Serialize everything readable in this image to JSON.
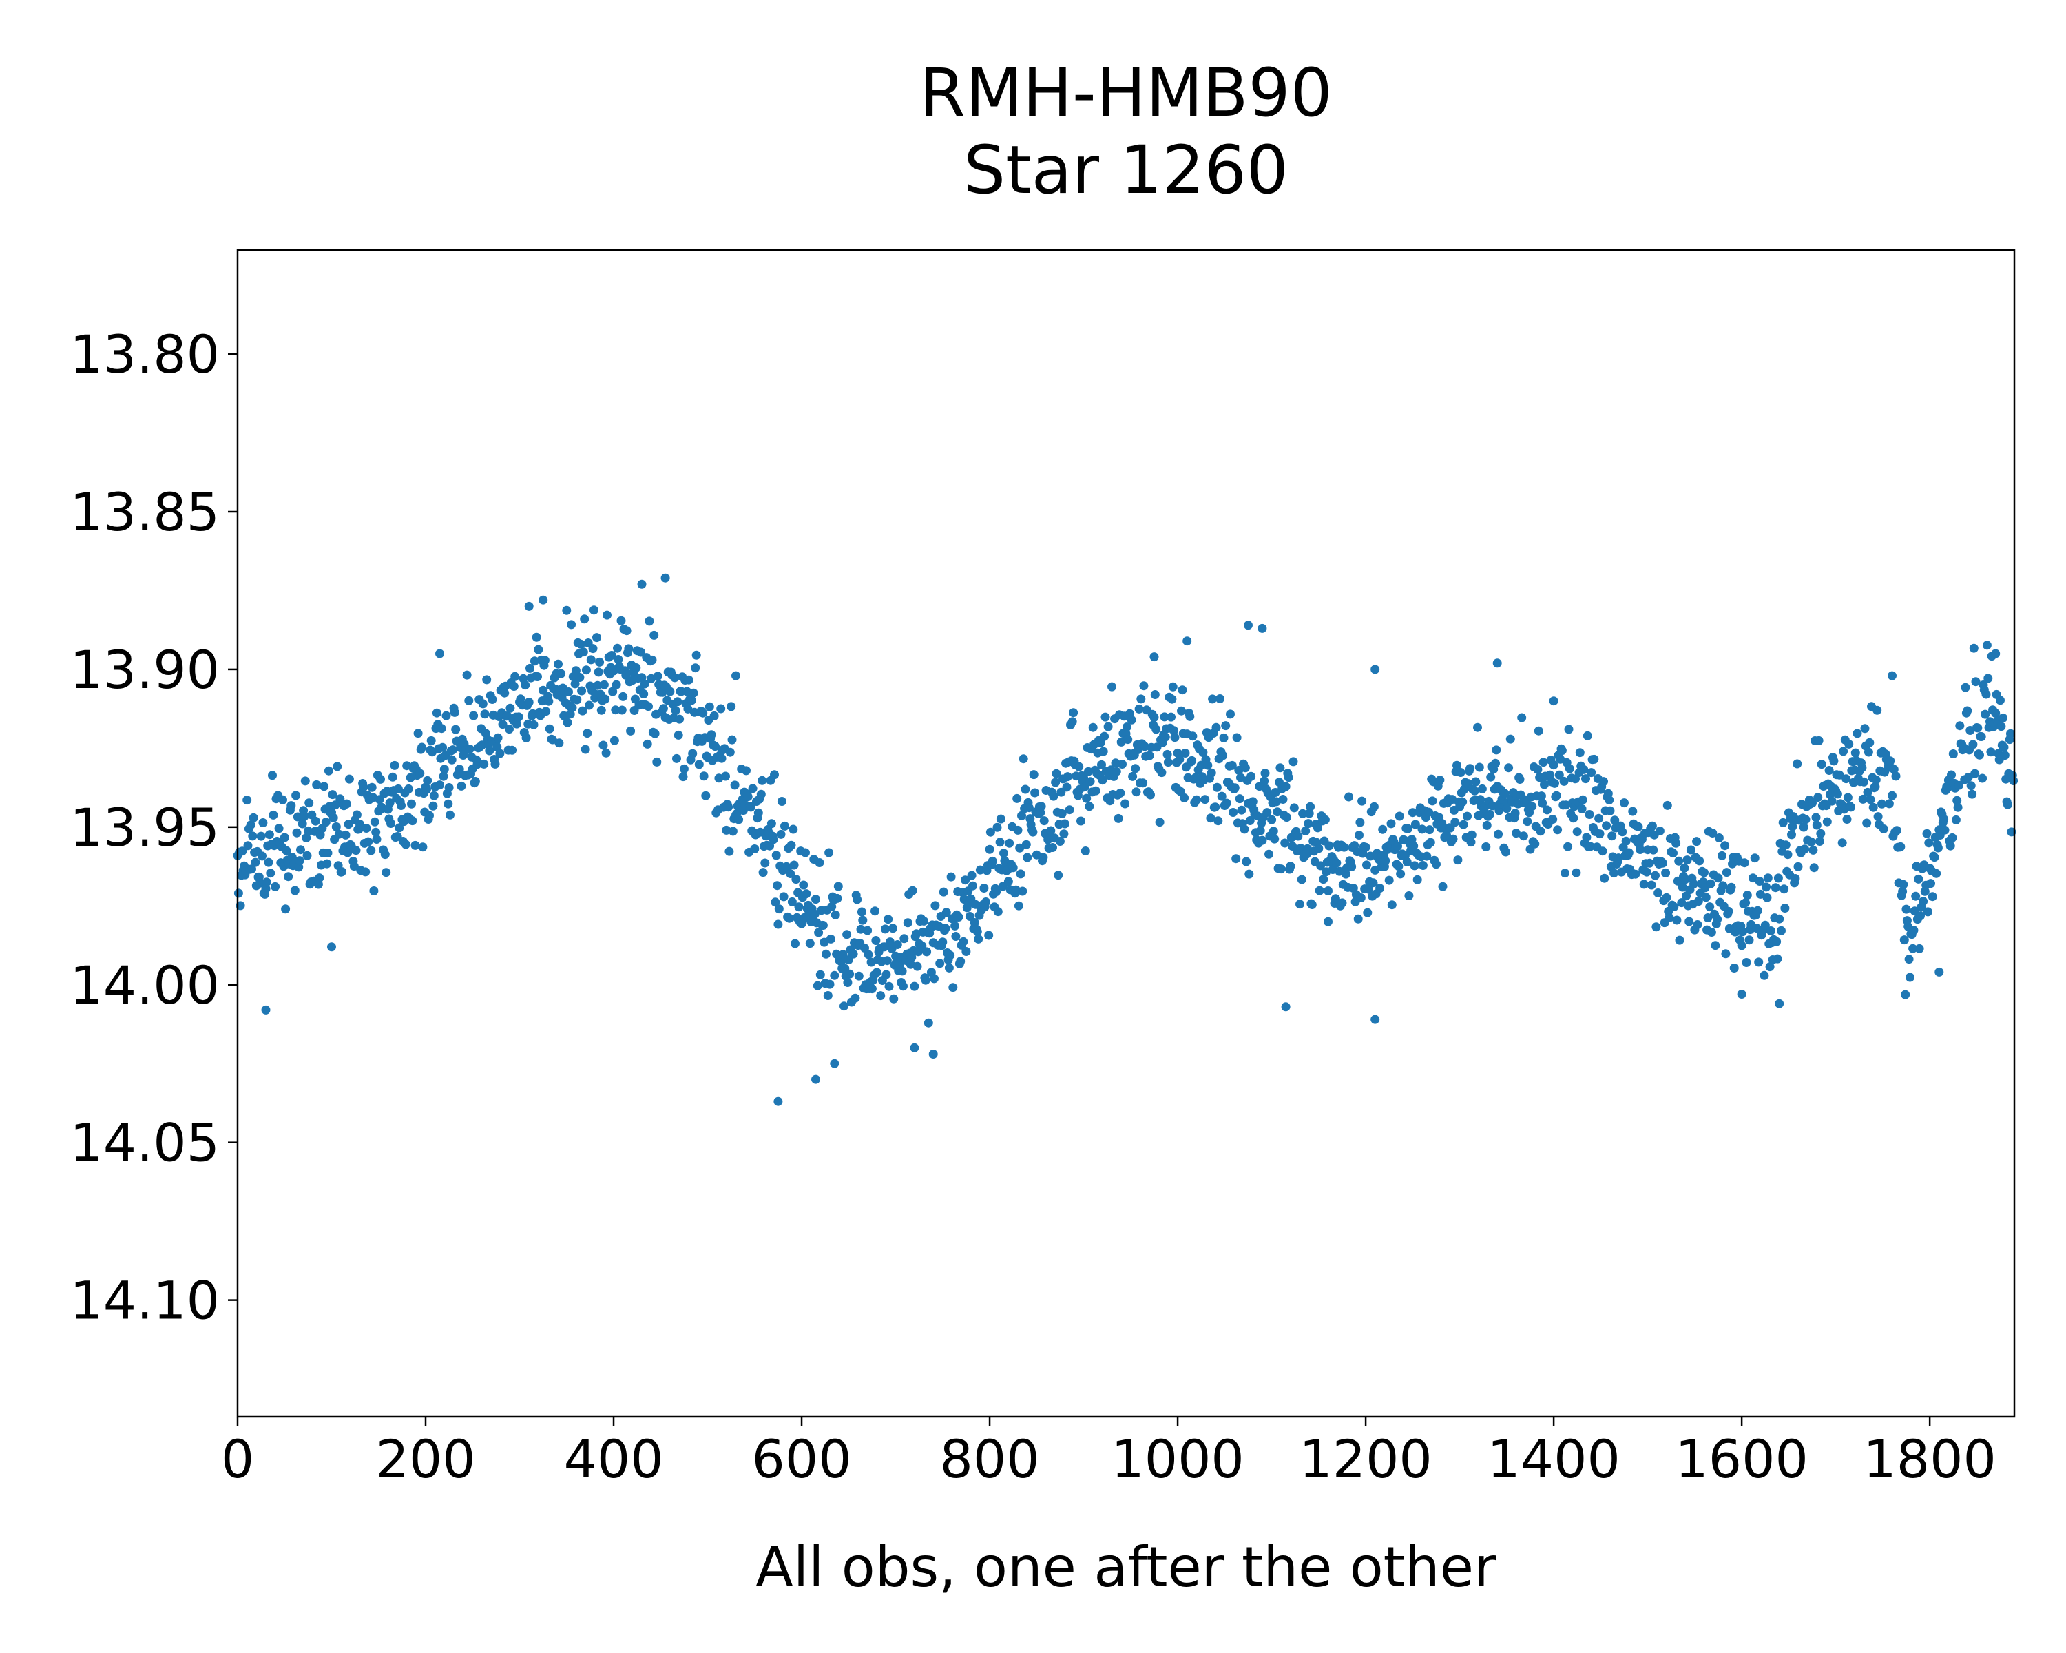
{
  "chart_data": {
    "type": "scatter",
    "title": [
      "RMH-HMB90",
      "Star 1260"
    ],
    "xlabel": "All obs, one after the other",
    "ylabel": "",
    "xlim": [
      0,
      1890
    ],
    "ylim": [
      14.137,
      13.767
    ],
    "y_inverted": true,
    "grid": false,
    "xticks": [
      0,
      200,
      400,
      600,
      800,
      1000,
      1200,
      1400,
      1600,
      1800
    ],
    "yticks": [
      13.8,
      13.85,
      13.9,
      13.95,
      14.0,
      14.05,
      14.1
    ],
    "ytick_labels": [
      "13.80",
      "13.85",
      "13.90",
      "13.95",
      "14.00",
      "14.05",
      "14.10"
    ],
    "marker_color": "#1f77b4",
    "n_points": 1890,
    "trend": [
      [
        0,
        13.962
      ],
      [
        40,
        13.958
      ],
      [
        100,
        13.951
      ],
      [
        150,
        13.946
      ],
      [
        200,
        13.935
      ],
      [
        250,
        13.922
      ],
      [
        300,
        13.913
      ],
      [
        350,
        13.906
      ],
      [
        400,
        13.901
      ],
      [
        450,
        13.905
      ],
      [
        500,
        13.925
      ],
      [
        550,
        13.948
      ],
      [
        600,
        13.972
      ],
      [
        650,
        13.99
      ],
      [
        700,
        13.993
      ],
      [
        750,
        13.985
      ],
      [
        800,
        13.966
      ],
      [
        850,
        13.948
      ],
      [
        900,
        13.935
      ],
      [
        950,
        13.927
      ],
      [
        1000,
        13.925
      ],
      [
        1050,
        13.935
      ],
      [
        1100,
        13.945
      ],
      [
        1150,
        13.957
      ],
      [
        1200,
        13.962
      ],
      [
        1250,
        13.955
      ],
      [
        1300,
        13.945
      ],
      [
        1350,
        13.94
      ],
      [
        1400,
        13.94
      ],
      [
        1450,
        13.948
      ],
      [
        1500,
        13.958
      ],
      [
        1550,
        13.966
      ],
      [
        1600,
        13.975
      ],
      [
        1630,
        13.982
      ],
      [
        1660,
        13.95
      ],
      [
        1700,
        13.935
      ],
      [
        1760,
        13.932
      ],
      [
        1775,
        13.985
      ],
      [
        1800,
        13.965
      ],
      [
        1850,
        13.915
      ],
      [
        1870,
        13.912
      ],
      [
        1890,
        13.945
      ]
    ],
    "scatter_sigma": 0.0095,
    "notable_points": [
      [
        30,
        14.008
      ],
      [
        100,
        13.988
      ],
      [
        215,
        13.895
      ],
      [
        310,
        13.88
      ],
      [
        325,
        13.878
      ],
      [
        430,
        13.873
      ],
      [
        455,
        13.871
      ],
      [
        530,
        13.902
      ],
      [
        575,
        14.037
      ],
      [
        615,
        14.03
      ],
      [
        635,
        14.025
      ],
      [
        720,
        14.02
      ],
      [
        740,
        14.022
      ],
      [
        975,
        13.896
      ],
      [
        1010,
        13.891
      ],
      [
        1075,
        13.886
      ],
      [
        1090,
        13.887
      ],
      [
        1115,
        14.007
      ],
      [
        1160,
        13.98
      ],
      [
        1210,
        14.011
      ],
      [
        1210,
        13.9
      ],
      [
        1340,
        13.898
      ],
      [
        1400,
        13.91
      ],
      [
        1600,
        14.003
      ],
      [
        1640,
        14.006
      ],
      [
        1760,
        13.902
      ],
      [
        1810,
        13.996
      ],
      [
        1870,
        13.895
      ]
    ]
  }
}
